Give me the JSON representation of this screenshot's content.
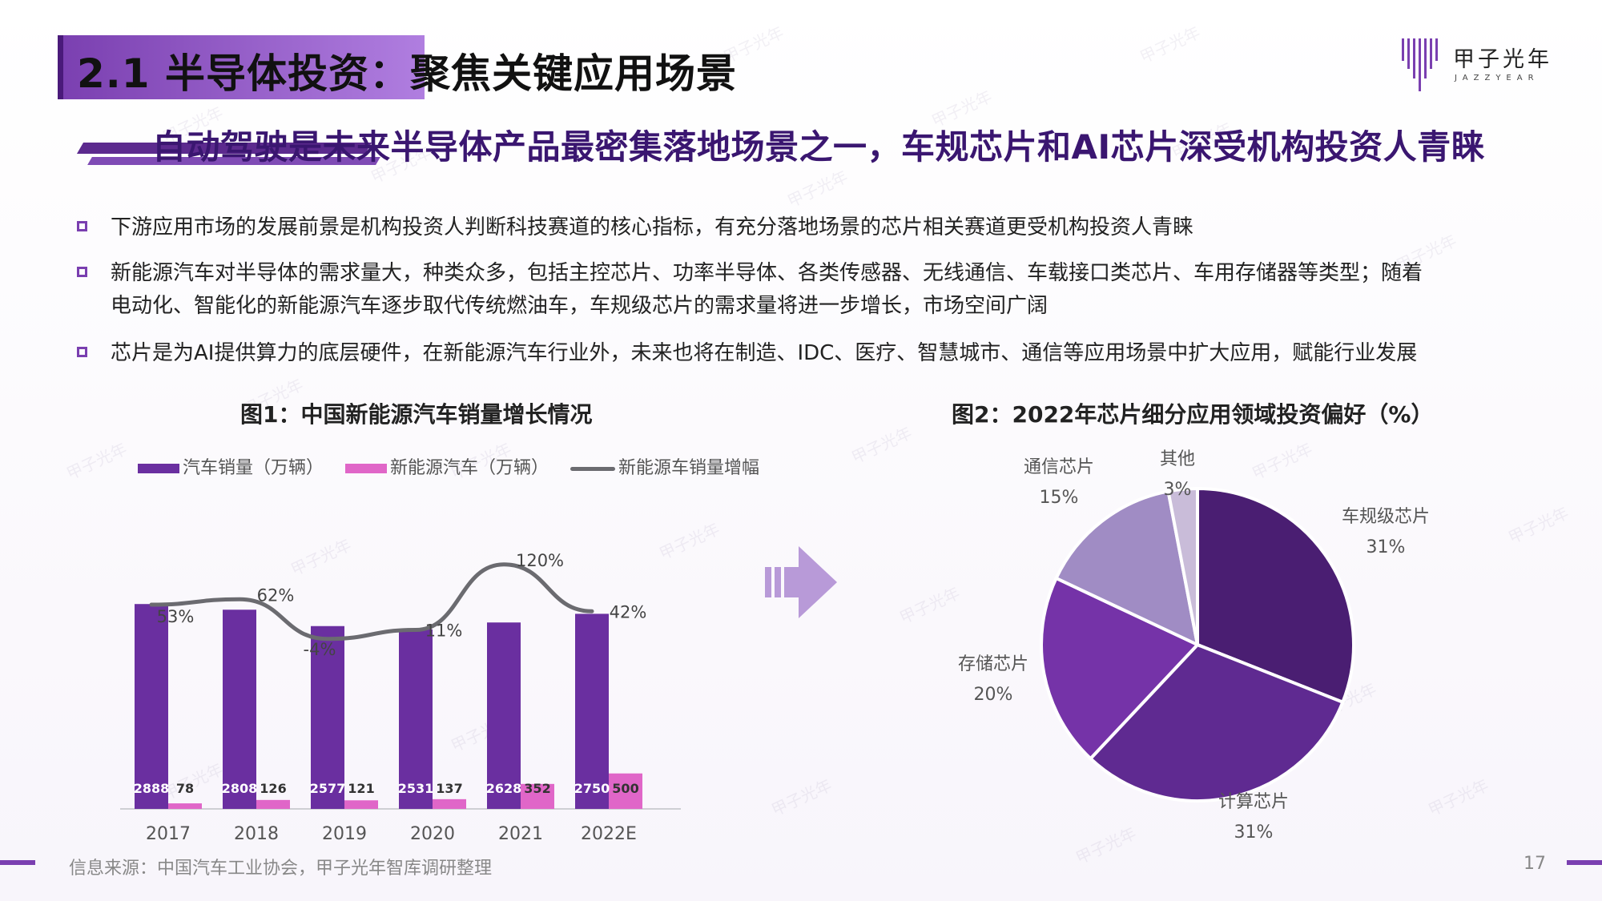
{
  "header": {
    "title": "2.1 半导体投资：聚焦关键应用场景",
    "logo_cn": "甲子光年",
    "logo_en": "JAZZYEAR"
  },
  "subtitle": "自动驾驶是未来半导体产品最密集落地场景之一，车规芯片和AI芯片深受机构投资人青睐",
  "bullets": [
    {
      "line1": "下游应用市场的发展前景是机构投资人判断科技赛道的核心指标，有充分落地场景的芯片相关赛道更受机构投资人青睐",
      "line2": ""
    },
    {
      "line1": "新能源汽车对半导体的需求量大，种类众多，包括主控芯片、功率半导体、各类传感器、无线通信、车载接口类芯片、车用存储器等类型；随着",
      "line2": "电动化、智能化的新能源汽车逐步取代传统燃油车，车规级芯片的需求量将进一步增长，市场空间广阔"
    },
    {
      "line1": "芯片是为AI提供算力的底层硬件，在新能源汽车行业外，未来也将在制造、IDC、医疗、智慧城市、通信等应用场景中扩大应用，赋能行业发展",
      "line2": ""
    }
  ],
  "figure1": {
    "title": "图1：中国新能源汽车销量增长情况",
    "legend": [
      "汽车销量（万辆）",
      "新能源汽车（万辆）",
      "新能源车销量增幅"
    ]
  },
  "figure2": {
    "title": "图2：2022年芯片细分应用领域投资偏好（%）"
  },
  "chart_data": [
    {
      "type": "bar",
      "title": "图1：中国新能源汽车销量增长情况",
      "categories": [
        "2017",
        "2018",
        "2019",
        "2020",
        "2021",
        "2022E"
      ],
      "series": [
        {
          "name": "汽车销量（万辆）",
          "values": [
            2888,
            2808,
            2577,
            2531,
            2628,
            2750
          ],
          "color": "#6a2fa0"
        },
        {
          "name": "新能源汽车（万辆）",
          "values": [
            78,
            126,
            121,
            137,
            352,
            500
          ],
          "color": "#e066c8"
        },
        {
          "name": "新能源车销量增幅",
          "values": [
            53,
            62,
            -4,
            11,
            120,
            42
          ],
          "value_labels": [
            "53%",
            "62%",
            "-4%",
            "11%",
            "120%",
            "42%"
          ],
          "type": "line",
          "color": "#6b6b70"
        }
      ],
      "ylim": [
        0,
        3500
      ],
      "xlabel": "",
      "ylabel": ""
    },
    {
      "type": "pie",
      "title": "图2：2022年芯片细分应用领域投资偏好（%）",
      "slices": [
        {
          "label": "车规级芯片",
          "value": 31,
          "pct": "31%",
          "color": "#4a1e72"
        },
        {
          "label": "计算芯片",
          "value": 31,
          "pct": "31%",
          "color": "#5f2a91"
        },
        {
          "label": "存储芯片",
          "value": 20,
          "pct": "20%",
          "color": "#7533a8"
        },
        {
          "label": "通信芯片",
          "value": 15,
          "pct": "15%",
          "color": "#a08cc4"
        },
        {
          "label": "其他",
          "value": 3,
          "pct": "3%",
          "color": "#c9bcd9"
        }
      ]
    }
  ],
  "footer": {
    "source": "信息来源：中国汽车工业协会，甲子光年智库调研整理",
    "page": "17"
  },
  "watermark": "甲子光年"
}
